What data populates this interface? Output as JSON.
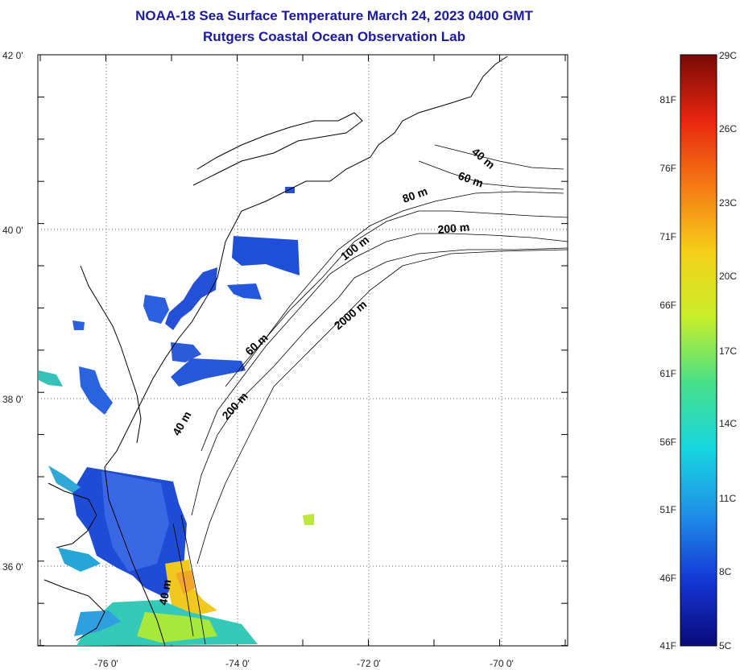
{
  "title": {
    "line1": "NOAA-18 Sea Surface Temperature March 24, 2023 0400 GMT",
    "line2": "Rutgers Coastal Ocean Observation Lab"
  },
  "map": {
    "lat_ticks": [
      "42 0'",
      "40 0'",
      "38 0'",
      "36 0'"
    ],
    "lon_ticks": [
      "-76 0'",
      "-74 0'",
      "-72 0'",
      "-70 0'"
    ],
    "depth_labels": [
      "40 m",
      "60 m",
      "80 m",
      "200 m",
      "100 m",
      "2000 m",
      "60 m",
      "40 m",
      "200 m",
      "40 m"
    ],
    "colors": {
      "land": "#ffffff",
      "coast": "#000000",
      "cold_sst": "#1e4fd6",
      "warm_sst": "#f2d21e",
      "mid_sst": "#34c9b8"
    }
  },
  "colorbar": {
    "celsius": [
      "29C",
      "26C",
      "23C",
      "20C",
      "17C",
      "14C",
      "11C",
      "8C",
      "5C"
    ],
    "fahrenheit": [
      "81F",
      "76F",
      "71F",
      "66F",
      "61F",
      "56F",
      "51F",
      "46F",
      "41F"
    ],
    "stops": [
      "#0a0a7a",
      "#1437d6",
      "#1f8fe8",
      "#18d6e0",
      "#47e08a",
      "#c8ef2a",
      "#f5cf1a",
      "#f57a14",
      "#e8260f",
      "#7a0a06"
    ]
  }
}
